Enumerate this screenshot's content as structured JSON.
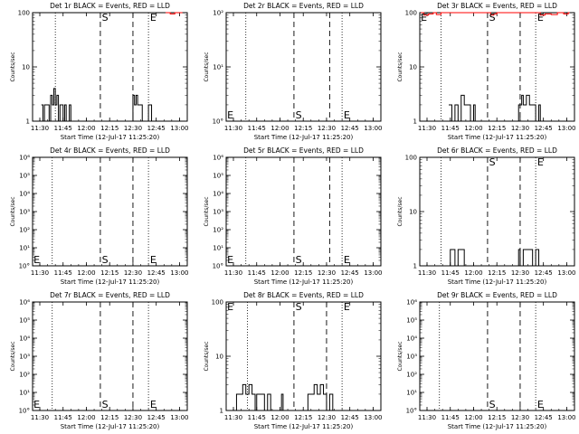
{
  "figure": {
    "background": "#ffffff",
    "event_color": "#000000",
    "lld_color": "#ff0000"
  },
  "chart_data": [
    {
      "type": "line",
      "title": "Det 1r BLACK = Events, RED = LLD",
      "ylabel": "Counts/sec",
      "xlabel": "Start Time (12-Jul-17 11:25:20)",
      "xlim": [
        "11:25:20",
        "13:05:00"
      ],
      "yscale": "log",
      "ylim": [
        1,
        100
      ],
      "yticks": [
        "1",
        "10",
        "100"
      ],
      "xticks": [
        "11:30",
        "11:45",
        "12:00",
        "12:15",
        "12:30",
        "12:45",
        "13:00"
      ],
      "dotted_lines": [
        "11:40",
        "12:40"
      ],
      "dashed_lines": [
        "12:09",
        "12:30"
      ],
      "markers": [
        {
          "label": "S",
          "x": "12:10",
          "pos": "top"
        },
        {
          "label": "E",
          "x": "12:41",
          "pos": "top"
        }
      ],
      "series": [
        {
          "color": "#000000",
          "points": [
            [
              "11:31",
              2
            ],
            [
              "11:32",
              1
            ],
            [
              "11:33",
              2
            ],
            [
              "11:35",
              2
            ],
            [
              "11:36",
              1
            ],
            [
              "11:37",
              3
            ],
            [
              "11:38",
              2
            ],
            [
              "11:39",
              4
            ],
            [
              "11:40",
              2
            ],
            [
              "11:41",
              3
            ],
            [
              "11:42",
              1
            ],
            [
              "11:43",
              2
            ],
            [
              "11:44",
              2
            ],
            [
              "11:45",
              1
            ],
            [
              "11:46",
              2
            ],
            [
              "11:47",
              1
            ],
            [
              "11:49",
              2
            ],
            [
              "11:50",
              1
            ],
            [
              "12:30",
              3
            ],
            [
              "12:31",
              2
            ],
            [
              "12:32",
              3
            ],
            [
              "12:33",
              2
            ],
            [
              "12:35",
              2
            ],
            [
              "12:36",
              1
            ],
            [
              "12:38",
              1
            ],
            [
              "12:40",
              2
            ],
            [
              "12:42",
              1
            ]
          ]
        },
        {
          "color": "#ff0000",
          "points": [
            [
              "12:51",
              100
            ],
            [
              "12:54",
              95
            ],
            [
              "12:57",
              100
            ],
            [
              "13:01",
              100
            ]
          ]
        }
      ]
    },
    {
      "type": "line",
      "title": "Det 2r BLACK = Events, RED = LLD",
      "ylabel": "Counts/sec",
      "xlabel": "Start Time (12-Jul-17 11:25:20)",
      "xlim": [
        "11:25:20",
        "13:05:00"
      ],
      "yscale": "log",
      "ylim": [
        1,
        100
      ],
      "yticks": [
        "10°",
        "10¹",
        "10²"
      ],
      "xticks": [
        "11:30",
        "11:45",
        "12:00",
        "12:15",
        "12:30",
        "12:45",
        "13:00"
      ],
      "dotted_lines": [
        "11:38",
        "12:40"
      ],
      "dashed_lines": [
        "12:09",
        "12:32"
      ],
      "markers": [
        {
          "label": "E",
          "x": "11:26",
          "pos": "bottom"
        },
        {
          "label": "S",
          "x": "12:10",
          "pos": "bottom"
        },
        {
          "label": "E",
          "x": "12:41",
          "pos": "bottom"
        }
      ],
      "series": []
    },
    {
      "type": "line",
      "title": "Det 3r BLACK = Events, RED = LLD",
      "ylabel": "Counts/sec",
      "xlabel": "Start Time (12-Jul-17 11:25:20)",
      "xlim": [
        "11:25:20",
        "13:05:00"
      ],
      "yscale": "log",
      "ylim": [
        1,
        100
      ],
      "yticks": [
        "1",
        "10",
        "100"
      ],
      "xticks": [
        "11:30",
        "11:45",
        "12:00",
        "12:15",
        "12:30",
        "12:45",
        "13:00"
      ],
      "dotted_lines": [
        "11:39",
        "12:40"
      ],
      "dashed_lines": [
        "12:09",
        "12:30"
      ],
      "markers": [
        {
          "label": "E",
          "x": "11:26",
          "pos": "top"
        },
        {
          "label": "S",
          "x": "12:10",
          "pos": "top"
        },
        {
          "label": "E",
          "x": "12:41",
          "pos": "top"
        }
      ],
      "series": [
        {
          "color": "#000000",
          "points": [
            [
              "11:44",
              2
            ],
            [
              "11:46",
              1
            ],
            [
              "11:48",
              2
            ],
            [
              "11:50",
              1
            ],
            [
              "11:52",
              3
            ],
            [
              "11:54",
              2
            ],
            [
              "11:56",
              2
            ],
            [
              "11:58",
              1
            ],
            [
              "12:00",
              2
            ],
            [
              "12:01",
              1
            ],
            [
              "12:29",
              2
            ],
            [
              "12:31",
              3
            ],
            [
              "12:32",
              2
            ],
            [
              "12:34",
              3
            ],
            [
              "12:36",
              2
            ],
            [
              "12:38",
              2
            ],
            [
              "12:40",
              1
            ],
            [
              "12:42",
              2
            ],
            [
              "12:43",
              1
            ]
          ]
        },
        {
          "color": "#ff0000",
          "points": [
            [
              "11:26",
              100
            ],
            [
              "11:28",
              90
            ],
            [
              "11:31",
              95
            ],
            [
              "11:34",
              100
            ],
            [
              "11:36",
              92
            ],
            [
              "11:39",
              100
            ],
            [
              "12:09",
              100
            ],
            [
              "12:11",
              90
            ],
            [
              "12:13",
              95
            ],
            [
              "12:15",
              100
            ],
            [
              "12:40",
              100
            ],
            [
              "12:43",
              90
            ],
            [
              "12:46",
              95
            ],
            [
              "12:50",
              92
            ],
            [
              "12:54",
              100
            ],
            [
              "12:58",
              95
            ],
            [
              "13:01",
              100
            ]
          ]
        }
      ]
    },
    {
      "type": "line",
      "title": "Det 4r BLACK = Events, RED = LLD",
      "ylabel": "Counts/sec",
      "xlabel": "Start Time (12-Jul-17 11:25:20)",
      "xlim": [
        "11:25:20",
        "13:05:00"
      ],
      "yscale": "log",
      "ylim": [
        1,
        1000000
      ],
      "yticks": [
        "10°",
        "10¹",
        "10²",
        "10³",
        "10⁴",
        "10⁵",
        "10⁶"
      ],
      "xticks": [
        "11:30",
        "11:45",
        "12:00",
        "12:15",
        "12:30",
        "12:45",
        "13:00"
      ],
      "dotted_lines": [
        "11:38",
        "12:40"
      ],
      "dashed_lines": [
        "12:09",
        "12:30"
      ],
      "markers": [
        {
          "label": "E",
          "x": "11:26",
          "pos": "bottom"
        },
        {
          "label": "S",
          "x": "12:10",
          "pos": "bottom"
        },
        {
          "label": "E",
          "x": "12:41",
          "pos": "bottom"
        }
      ],
      "series": []
    },
    {
      "type": "line",
      "title": "Det 5r BLACK = Events, RED = LLD",
      "ylabel": "Counts/sec",
      "xlabel": "Start Time (12-Jul-17 11:25:20)",
      "xlim": [
        "11:25:20",
        "13:05:00"
      ],
      "yscale": "log",
      "ylim": [
        1,
        1000000
      ],
      "yticks": [
        "10°",
        "10¹",
        "10²",
        "10³",
        "10⁴",
        "10⁵",
        "10⁶"
      ],
      "xticks": [
        "11:30",
        "11:45",
        "12:00",
        "12:15",
        "12:30",
        "12:45",
        "13:00"
      ],
      "dotted_lines": [
        "11:38",
        "12:40"
      ],
      "dashed_lines": [
        "12:09",
        "12:32"
      ],
      "markers": [
        {
          "label": "E",
          "x": "11:26",
          "pos": "bottom"
        },
        {
          "label": "S",
          "x": "12:10",
          "pos": "bottom"
        },
        {
          "label": "E",
          "x": "12:41",
          "pos": "bottom"
        }
      ],
      "series": []
    },
    {
      "type": "line",
      "title": "Det 6r BLACK = Events, RED = LLD",
      "ylabel": "Counts/sec",
      "xlabel": "Start Time (12-Jul-17 11:25:20)",
      "xlim": [
        "11:25:20",
        "13:05:00"
      ],
      "yscale": "log",
      "ylim": [
        1,
        100
      ],
      "yticks": [
        "1",
        "10",
        "100"
      ],
      "xticks": [
        "11:30",
        "11:45",
        "12:00",
        "12:15",
        "12:30",
        "12:45",
        "13:00"
      ],
      "dotted_lines": [
        "11:39",
        "12:40"
      ],
      "dashed_lines": [
        "12:09",
        "12:30"
      ],
      "markers": [
        {
          "label": "S",
          "x": "12:10",
          "pos": "top"
        },
        {
          "label": "E",
          "x": "12:41",
          "pos": "top"
        }
      ],
      "series": [
        {
          "color": "#000000",
          "points": [
            [
              "11:44",
              1
            ],
            [
              "11:45",
              2
            ],
            [
              "11:47",
              2
            ],
            [
              "11:48",
              1
            ],
            [
              "11:50",
              2
            ],
            [
              "11:53",
              2
            ],
            [
              "11:54",
              1
            ],
            [
              "12:29",
              2
            ],
            [
              "12:30",
              1
            ],
            [
              "12:32",
              2
            ],
            [
              "12:36",
              2
            ],
            [
              "12:38",
              1
            ],
            [
              "12:40",
              2
            ],
            [
              "12:42",
              1
            ]
          ]
        }
      ]
    },
    {
      "type": "line",
      "title": "Det 7r BLACK = Events, RED = LLD",
      "ylabel": "Counts/sec",
      "xlabel": "Start Time (12-Jul-17 11:25:20)",
      "xlim": [
        "11:25:20",
        "13:05:00"
      ],
      "yscale": "log",
      "ylim": [
        1,
        1000000
      ],
      "yticks": [
        "10°",
        "10¹",
        "10²",
        "10³",
        "10⁴",
        "10⁵",
        "10⁶"
      ],
      "xticks": [
        "11:30",
        "11:45",
        "12:00",
        "12:15",
        "12:30",
        "12:45",
        "13:00"
      ],
      "dotted_lines": [
        "11:38",
        "12:40"
      ],
      "dashed_lines": [
        "12:09",
        "12:30"
      ],
      "markers": [
        {
          "label": "E",
          "x": "11:26",
          "pos": "bottom"
        },
        {
          "label": "S",
          "x": "12:10",
          "pos": "bottom"
        },
        {
          "label": "E",
          "x": "12:41",
          "pos": "bottom"
        }
      ],
      "series": []
    },
    {
      "type": "line",
      "title": "Det 8r BLACK = Events, RED = LLD",
      "ylabel": "Counts/sec",
      "xlabel": "Start Time (12-Jul-17 11:25:20)",
      "xlim": [
        "11:25:20",
        "13:05:00"
      ],
      "yscale": "log",
      "ylim": [
        1,
        100
      ],
      "yticks": [
        "1",
        "10",
        "100"
      ],
      "xticks": [
        "11:30",
        "11:45",
        "12:00",
        "12:15",
        "12:30",
        "12:45",
        "13:00"
      ],
      "dotted_lines": [
        "11:39",
        "12:40"
      ],
      "dashed_lines": [
        "12:09",
        "12:30"
      ],
      "markers": [
        {
          "label": "E",
          "x": "11:26",
          "pos": "top"
        },
        {
          "label": "S",
          "x": "12:10",
          "pos": "top"
        },
        {
          "label": "E",
          "x": "12:41",
          "pos": "top"
        }
      ],
      "series": [
        {
          "color": "#000000",
          "points": [
            [
              "11:31",
              1
            ],
            [
              "11:32",
              2
            ],
            [
              "11:35",
              2
            ],
            [
              "11:36",
              3
            ],
            [
              "11:38",
              2
            ],
            [
              "11:40",
              3
            ],
            [
              "11:42",
              2
            ],
            [
              "11:44",
              1
            ],
            [
              "11:45",
              2
            ],
            [
              "11:48",
              2
            ],
            [
              "11:50",
              1
            ],
            [
              "11:52",
              2
            ],
            [
              "11:54",
              1
            ],
            [
              "12:01",
              2
            ],
            [
              "12:02",
              1
            ],
            [
              "12:18",
              2
            ],
            [
              "12:20",
              2
            ],
            [
              "12:22",
              3
            ],
            [
              "12:24",
              2
            ],
            [
              "12:26",
              3
            ],
            [
              "12:28",
              2
            ],
            [
              "12:30",
              1
            ],
            [
              "12:32",
              2
            ],
            [
              "12:34",
              1
            ],
            [
              "12:40",
              1
            ]
          ]
        }
      ]
    },
    {
      "type": "line",
      "title": "Det 9r BLACK = Events, RED = LLD",
      "ylabel": "Counts/sec",
      "xlabel": "Start Time (12-Jul-17 11:25:20)",
      "xlim": [
        "11:25:20",
        "13:05:00"
      ],
      "yscale": "log",
      "ylim": [
        1,
        1000000
      ],
      "yticks": [
        "10°",
        "10¹",
        "10²",
        "10³",
        "10⁴",
        "10⁵",
        "10⁶"
      ],
      "xticks": [
        "11:30",
        "11:45",
        "12:00",
        "12:15",
        "12:30",
        "12:45",
        "13:00"
      ],
      "dotted_lines": [
        "11:38",
        "12:40"
      ],
      "dashed_lines": [
        "12:09",
        "12:30"
      ],
      "markers": [
        {
          "label": "S",
          "x": "12:10",
          "pos": "bottom"
        },
        {
          "label": "E",
          "x": "12:41",
          "pos": "bottom"
        }
      ],
      "series": []
    }
  ]
}
